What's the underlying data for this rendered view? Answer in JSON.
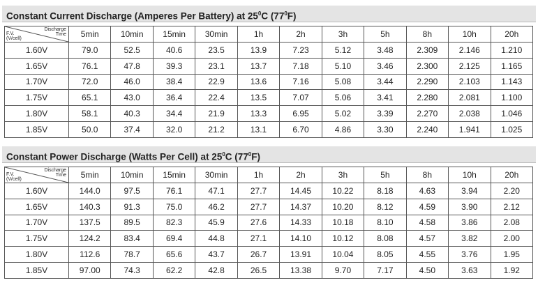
{
  "tables": [
    {
      "title": {
        "before": "Constant Current Discharge (Amperes Per Battery) at 25",
        "sup1": "0",
        "mid": "C (77",
        "sup2": "0",
        "after": "F)"
      },
      "corner": {
        "top": [
          "Discharge",
          "Time"
        ],
        "bottom": [
          "F.V.",
          "(V/cell)"
        ]
      },
      "columns": [
        "5min",
        "10min",
        "15min",
        "30min",
        "1h",
        "2h",
        "3h",
        "5h",
        "8h",
        "10h",
        "20h"
      ],
      "rows": [
        {
          "label": "1.60V",
          "cells": [
            "79.0",
            "52.5",
            "40.6",
            "23.5",
            "13.9",
            "7.23",
            "5.12",
            "3.48",
            "2.309",
            "2.146",
            "1.210"
          ]
        },
        {
          "label": "1.65V",
          "cells": [
            "76.1",
            "47.8",
            "39.3",
            "23.1",
            "13.7",
            "7.18",
            "5.10",
            "3.46",
            "2.300",
            "2.125",
            "1.165"
          ]
        },
        {
          "label": "1.70V",
          "cells": [
            "72.0",
            "46.0",
            "38.4",
            "22.9",
            "13.6",
            "7.16",
            "5.08",
            "3.44",
            "2.290",
            "2.103",
            "1.143"
          ]
        },
        {
          "label": "1.75V",
          "cells": [
            "65.1",
            "43.0",
            "36.4",
            "22.4",
            "13.5",
            "7.07",
            "5.06",
            "3.41",
            "2.280",
            "2.081",
            "1.100"
          ]
        },
        {
          "label": "1.80V",
          "cells": [
            "58.1",
            "40.3",
            "34.4",
            "21.9",
            "13.3",
            "6.95",
            "5.02",
            "3.39",
            "2.270",
            "2.038",
            "1.046"
          ]
        },
        {
          "label": "1.85V",
          "cells": [
            "50.0",
            "37.4",
            "32.0",
            "21.2",
            "13.1",
            "6.70",
            "4.86",
            "3.30",
            "2.240",
            "1.941",
            "1.025"
          ]
        }
      ]
    },
    {
      "title": {
        "before": "Constant Power Discharge (Watts Per Cell) at 25",
        "sup1": "0",
        "mid": "C (77",
        "sup2": "0",
        "after": "F)"
      },
      "corner": {
        "top": [
          "Discharge",
          "Time"
        ],
        "bottom": [
          "F.V.",
          "(V/cell)"
        ]
      },
      "columns": [
        "5min",
        "10min",
        "15min",
        "30min",
        "1h",
        "2h",
        "3h",
        "5h",
        "8h",
        "10h",
        "20h"
      ],
      "rows": [
        {
          "label": "1.60V",
          "cells": [
            "144.0",
            "97.5",
            "76.1",
            "47.1",
            "27.7",
            "14.45",
            "10.22",
            "8.18",
            "4.63",
            "3.94",
            "2.20"
          ]
        },
        {
          "label": "1.65V",
          "cells": [
            "140.3",
            "91.3",
            "75.0",
            "46.2",
            "27.7",
            "14.37",
            "10.20",
            "8.12",
            "4.59",
            "3.90",
            "2.12"
          ]
        },
        {
          "label": "1.70V",
          "cells": [
            "137.5",
            "89.5",
            "82.3",
            "45.9",
            "27.6",
            "14.33",
            "10.18",
            "8.10",
            "4.58",
            "3.86",
            "2.08"
          ]
        },
        {
          "label": "1.75V",
          "cells": [
            "124.2",
            "83.4",
            "69.4",
            "44.8",
            "27.1",
            "14.10",
            "10.12",
            "8.08",
            "4.57",
            "3.82",
            "2.00"
          ]
        },
        {
          "label": "1.80V",
          "cells": [
            "112.6",
            "78.7",
            "65.6",
            "43.7",
            "26.7",
            "13.91",
            "10.04",
            "8.05",
            "4.55",
            "3.76",
            "1.95"
          ]
        },
        {
          "label": "1.85V",
          "cells": [
            "97.00",
            "74.3",
            "62.2",
            "42.8",
            "26.5",
            "13.38",
            "9.70",
            "7.17",
            "4.50",
            "3.63",
            "1.92"
          ]
        }
      ]
    }
  ]
}
